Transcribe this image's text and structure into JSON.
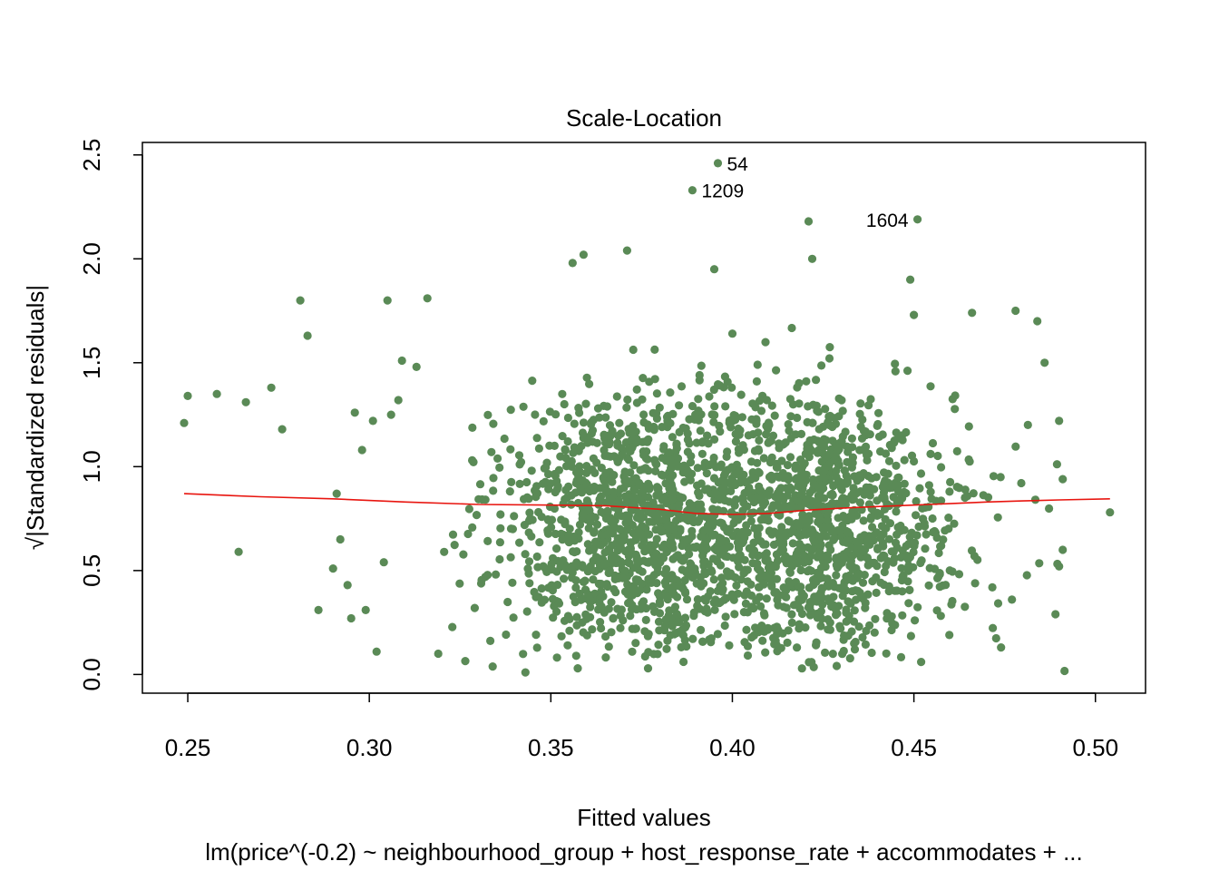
{
  "chart_data": {
    "type": "scatter",
    "title": "Scale-Location",
    "xlabel": "Fitted values",
    "ylabel": "√|Standardized residuals|",
    "ylabel_parts": {
      "sqrt": "√",
      "text": "Standardized residuals"
    },
    "subtitle": "lm(price^(-0.2) ~ neighbourhood_group + host_response_rate + accommodates + ...",
    "xlim": [
      0.2375,
      0.5138
    ],
    "ylim": [
      -0.09,
      2.56
    ],
    "x_ticks": [
      0.25,
      0.3,
      0.35,
      0.4,
      0.45,
      0.5
    ],
    "x_tick_labels": [
      "0.25",
      "0.30",
      "0.35",
      "0.40",
      "0.45",
      "0.50"
    ],
    "y_ticks": [
      0.0,
      0.5,
      1.0,
      1.5,
      2.0,
      2.5
    ],
    "y_tick_labels": [
      "0.0",
      "0.5",
      "1.0",
      "1.5",
      "2.0",
      "2.5"
    ],
    "grid": false,
    "point_color": "#5A8A56",
    "line_color": "#E8150F",
    "labeled_points": [
      {
        "label": "54",
        "x": 0.396,
        "y": 2.46,
        "side": "right"
      },
      {
        "label": "1209",
        "x": 0.389,
        "y": 2.33,
        "side": "right"
      },
      {
        "label": "1604",
        "x": 0.451,
        "y": 2.19,
        "side": "left"
      }
    ],
    "outlier_points": [
      {
        "x": 0.249,
        "y": 1.21
      },
      {
        "x": 0.25,
        "y": 1.34
      },
      {
        "x": 0.258,
        "y": 1.35
      },
      {
        "x": 0.264,
        "y": 0.59
      },
      {
        "x": 0.266,
        "y": 1.31
      },
      {
        "x": 0.273,
        "y": 1.38
      },
      {
        "x": 0.276,
        "y": 1.18
      },
      {
        "x": 0.281,
        "y": 1.8
      },
      {
        "x": 0.283,
        "y": 1.63
      },
      {
        "x": 0.286,
        "y": 0.31
      },
      {
        "x": 0.29,
        "y": 0.51
      },
      {
        "x": 0.291,
        "y": 0.87
      },
      {
        "x": 0.292,
        "y": 0.65
      },
      {
        "x": 0.294,
        "y": 0.43
      },
      {
        "x": 0.295,
        "y": 0.27
      },
      {
        "x": 0.296,
        "y": 1.26
      },
      {
        "x": 0.298,
        "y": 1.08
      },
      {
        "x": 0.299,
        "y": 0.31
      },
      {
        "x": 0.301,
        "y": 1.22
      },
      {
        "x": 0.302,
        "y": 0.11
      },
      {
        "x": 0.304,
        "y": 0.54
      },
      {
        "x": 0.305,
        "y": 1.8
      },
      {
        "x": 0.306,
        "y": 1.25
      },
      {
        "x": 0.308,
        "y": 1.32
      },
      {
        "x": 0.309,
        "y": 1.51
      },
      {
        "x": 0.313,
        "y": 1.48
      },
      {
        "x": 0.316,
        "y": 1.81
      },
      {
        "x": 0.395,
        "y": 1.95
      },
      {
        "x": 0.4,
        "y": 1.64
      },
      {
        "x": 0.421,
        "y": 2.18
      },
      {
        "x": 0.422,
        "y": 2.0
      },
      {
        "x": 0.449,
        "y": 1.9
      },
      {
        "x": 0.45,
        "y": 1.73
      },
      {
        "x": 0.356,
        "y": 1.98
      },
      {
        "x": 0.359,
        "y": 2.02
      },
      {
        "x": 0.371,
        "y": 2.04
      },
      {
        "x": 0.466,
        "y": 1.74
      },
      {
        "x": 0.478,
        "y": 1.75
      },
      {
        "x": 0.484,
        "y": 1.7
      },
      {
        "x": 0.486,
        "y": 1.5
      },
      {
        "x": 0.49,
        "y": 1.22
      },
      {
        "x": 0.491,
        "y": 0.94
      },
      {
        "x": 0.491,
        "y": 0.6
      },
      {
        "x": 0.49,
        "y": 0.52
      },
      {
        "x": 0.504,
        "y": 0.78
      },
      {
        "x": 0.489,
        "y": 0.29
      },
      {
        "x": 0.477,
        "y": 0.36
      },
      {
        "x": 0.474,
        "y": 0.13
      },
      {
        "x": 0.343,
        "y": 0.01
      },
      {
        "x": 0.452,
        "y": 0.06
      },
      {
        "x": 0.319,
        "y": 0.1
      }
    ],
    "cloud_seed": 20240531,
    "cloud_count": 2300,
    "smooth_line": {
      "x": [
        0.249,
        0.27,
        0.29,
        0.31,
        0.33,
        0.35,
        0.365,
        0.38,
        0.39,
        0.4,
        0.41,
        0.42,
        0.43,
        0.44,
        0.45,
        0.46,
        0.47,
        0.48,
        0.49,
        0.504
      ],
      "y": [
        0.87,
        0.855,
        0.845,
        0.83,
        0.818,
        0.815,
        0.812,
        0.795,
        0.775,
        0.77,
        0.775,
        0.79,
        0.8,
        0.808,
        0.815,
        0.822,
        0.83,
        0.835,
        0.84,
        0.845
      ]
    }
  }
}
